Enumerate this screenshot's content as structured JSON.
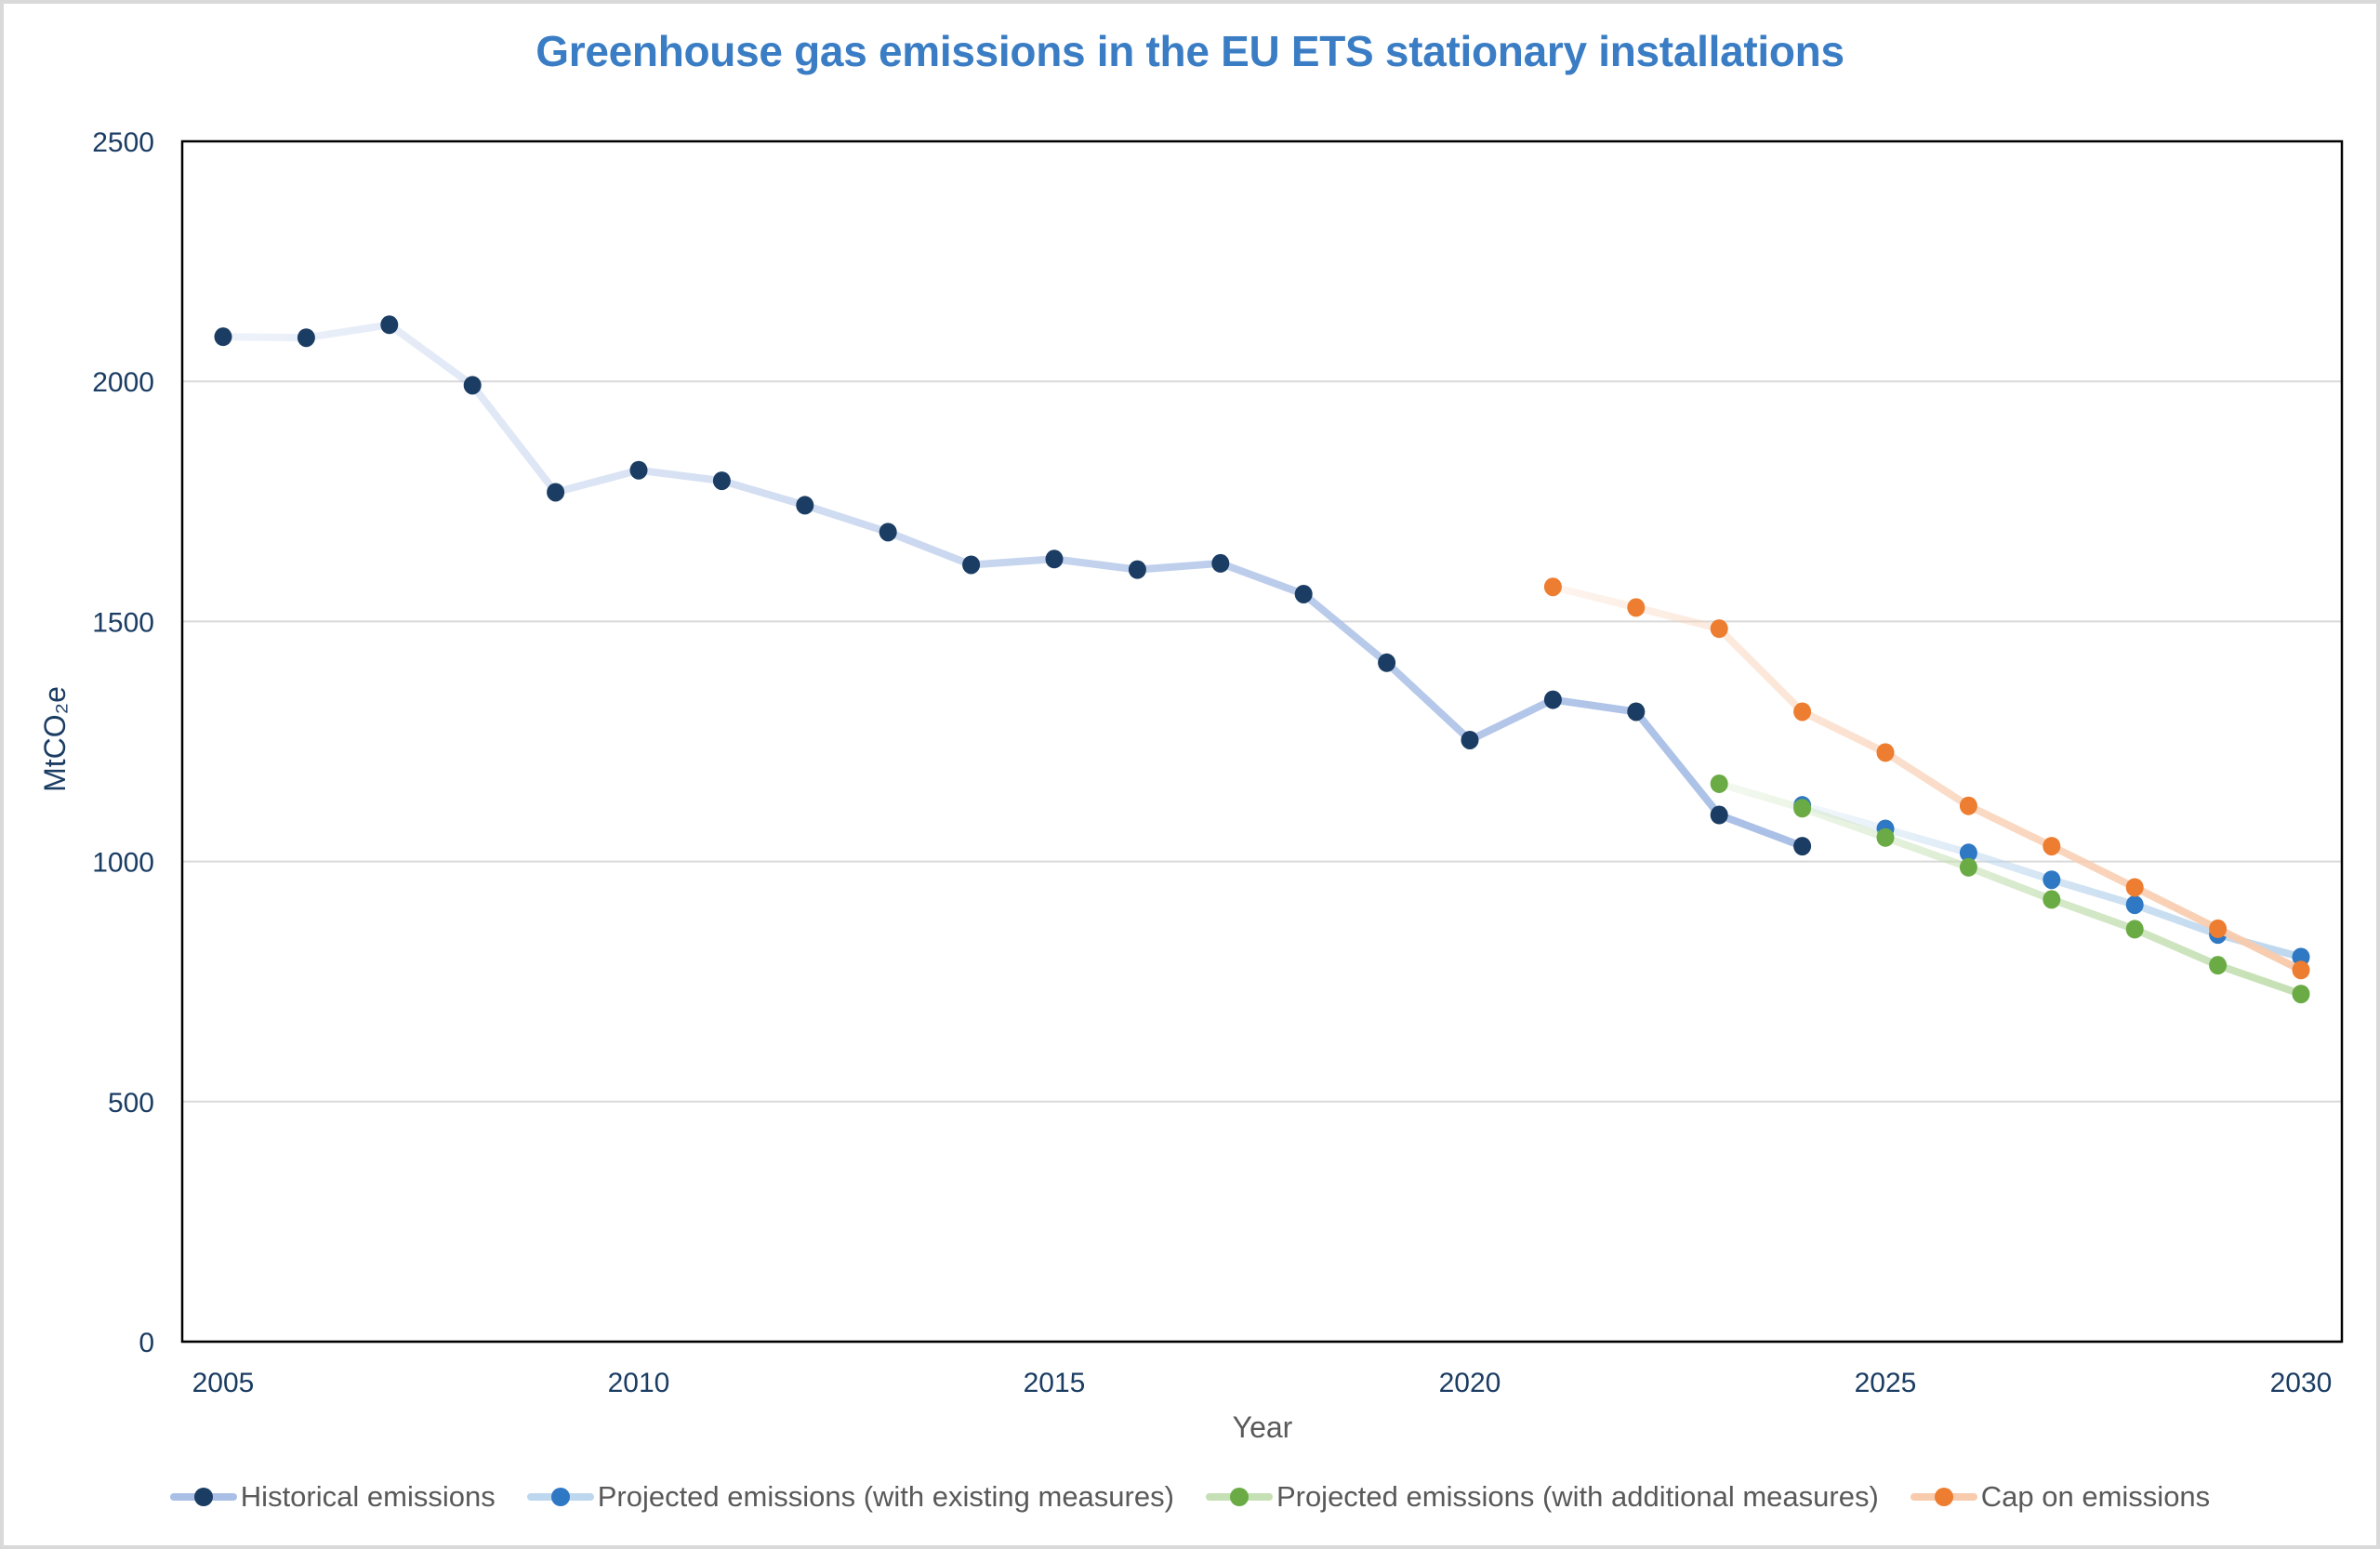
{
  "chart_data": {
    "type": "line",
    "title": "Greenhouse gas emissions in the EU ETS stationary installations",
    "xlabel": "Year",
    "ylabel": "MtCO₂e",
    "xlim": [
      2004.5,
      2030.5
    ],
    "ylim": [
      0,
      2500
    ],
    "x_ticks": [
      2005,
      2010,
      2015,
      2020,
      2025,
      2030
    ],
    "y_ticks": [
      0,
      500,
      1000,
      1500,
      2000,
      2500
    ],
    "grid": true,
    "legend_position": "bottom",
    "series": [
      {
        "name": "Historical emissions",
        "marker_color": "#1b3d63",
        "line_color": "#a9bfe6",
        "x": [
          2005,
          2006,
          2007,
          2008,
          2009,
          2010,
          2011,
          2012,
          2013,
          2014,
          2015,
          2016,
          2017,
          2018,
          2019,
          2020,
          2021,
          2022,
          2023,
          2024
        ],
        "values": [
          2093,
          2091,
          2118,
          1992,
          1769,
          1815,
          1793,
          1742,
          1686,
          1618,
          1630,
          1608,
          1621,
          1557,
          1414,
          1253,
          1337,
          1312,
          1097,
          1032
        ]
      },
      {
        "name": "Projected emissions (with existing measures)",
        "marker_color": "#2f78c4",
        "line_color": "#bdd7ee",
        "x": [
          2024,
          2025,
          2026,
          2027,
          2028,
          2029,
          2030
        ],
        "values": [
          1117,
          1068,
          1018,
          962,
          910,
          848,
          801
        ]
      },
      {
        "name": "Projected emissions (with additional measures)",
        "marker_color": "#6aab45",
        "line_color": "#c5e0b4",
        "x": [
          2023,
          2024,
          2025,
          2026,
          2027,
          2028,
          2029,
          2030
        ],
        "values": [
          1162,
          1111,
          1050,
          988,
          921,
          859,
          784,
          724
        ]
      },
      {
        "name": "Cap on emissions",
        "marker_color": "#ed7d31",
        "line_color": "#f8cbad",
        "x": [
          2021,
          2022,
          2023,
          2024,
          2025,
          2026,
          2027,
          2028,
          2029,
          2030
        ],
        "values": [
          1572,
          1529,
          1485,
          1312,
          1227,
          1116,
          1032,
          946,
          860,
          774
        ]
      }
    ]
  }
}
